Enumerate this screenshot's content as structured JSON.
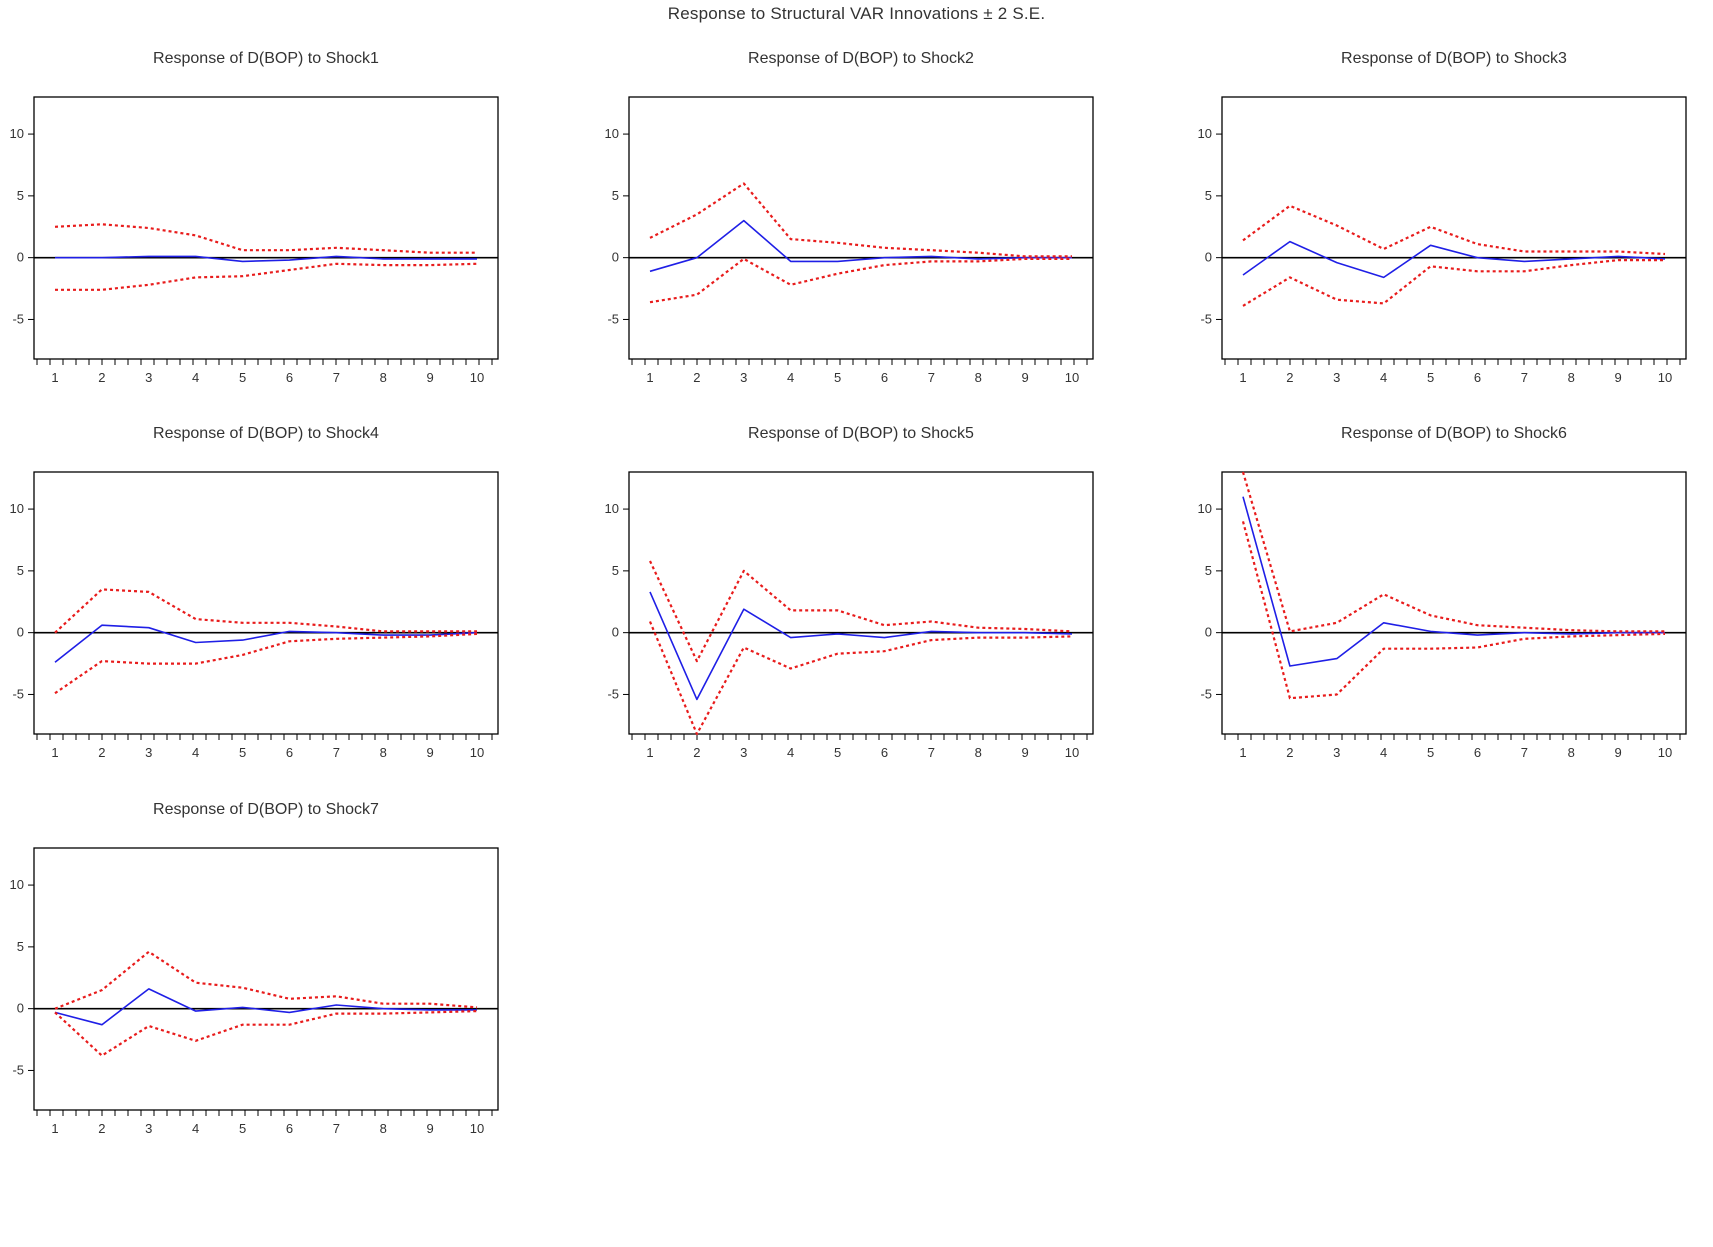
{
  "title": "Response to Structural VAR Innovations ± 2 S.E.",
  "colors": {
    "response": "#1f1fe6",
    "bands": "#e81c1c",
    "zero_line": "#000000"
  },
  "chart_data": [
    {
      "type": "line",
      "title": "Response of D(BOP) to Shock1",
      "x": [
        1,
        2,
        3,
        4,
        5,
        6,
        7,
        8,
        9,
        10
      ],
      "ylim": [
        -8.2,
        13
      ],
      "yticks": [
        -5,
        0,
        5,
        10
      ],
      "series": [
        {
          "role": "response",
          "values": [
            0.0,
            0.0,
            0.1,
            0.1,
            -0.3,
            -0.2,
            0.1,
            -0.1,
            -0.1,
            -0.1
          ]
        },
        {
          "role": "upper",
          "values": [
            2.5,
            2.7,
            2.4,
            1.8,
            0.6,
            0.6,
            0.8,
            0.6,
            0.4,
            0.4
          ]
        },
        {
          "role": "lower",
          "values": [
            -2.6,
            -2.6,
            -2.2,
            -1.6,
            -1.5,
            -1.0,
            -0.5,
            -0.6,
            -0.6,
            -0.5
          ]
        }
      ]
    },
    {
      "type": "line",
      "title": "Response of D(BOP) to Shock2",
      "x": [
        1,
        2,
        3,
        4,
        5,
        6,
        7,
        8,
        9,
        10
      ],
      "ylim": [
        -8.2,
        13
      ],
      "yticks": [
        -5,
        0,
        5,
        10
      ],
      "series": [
        {
          "role": "response",
          "values": [
            -1.1,
            0.0,
            3.0,
            -0.3,
            -0.3,
            0.0,
            0.1,
            -0.1,
            0.0,
            0.0
          ]
        },
        {
          "role": "upper",
          "values": [
            1.6,
            3.5,
            6.0,
            1.5,
            1.2,
            0.8,
            0.6,
            0.4,
            0.1,
            0.1
          ]
        },
        {
          "role": "lower",
          "values": [
            -3.6,
            -3.0,
            -0.1,
            -2.2,
            -1.3,
            -0.6,
            -0.3,
            -0.3,
            -0.1,
            -0.1
          ]
        }
      ]
    },
    {
      "type": "line",
      "title": "Response of D(BOP) to Shock3",
      "x": [
        1,
        2,
        3,
        4,
        5,
        6,
        7,
        8,
        9,
        10
      ],
      "ylim": [
        -8.2,
        13
      ],
      "yticks": [
        -5,
        0,
        5,
        10
      ],
      "series": [
        {
          "role": "response",
          "values": [
            -1.4,
            1.3,
            -0.4,
            -1.6,
            1.0,
            0.0,
            -0.3,
            -0.1,
            0.1,
            -0.1
          ]
        },
        {
          "role": "upper",
          "values": [
            1.4,
            4.2,
            2.6,
            0.7,
            2.5,
            1.1,
            0.5,
            0.5,
            0.5,
            0.3
          ]
        },
        {
          "role": "lower",
          "values": [
            -3.9,
            -1.6,
            -3.4,
            -3.7,
            -0.7,
            -1.1,
            -1.1,
            -0.6,
            -0.2,
            -0.2
          ]
        }
      ]
    },
    {
      "type": "line",
      "title": "Response of D(BOP) to Shock4",
      "x": [
        1,
        2,
        3,
        4,
        5,
        6,
        7,
        8,
        9,
        10
      ],
      "ylim": [
        -8.2,
        13
      ],
      "yticks": [
        -5,
        0,
        5,
        10
      ],
      "series": [
        {
          "role": "response",
          "values": [
            -2.4,
            0.6,
            0.4,
            -0.8,
            -0.6,
            0.1,
            0.0,
            -0.2,
            -0.2,
            0.0
          ]
        },
        {
          "role": "upper",
          "values": [
            0.0,
            3.5,
            3.3,
            1.1,
            0.8,
            0.8,
            0.5,
            0.1,
            0.1,
            0.1
          ]
        },
        {
          "role": "lower",
          "values": [
            -4.9,
            -2.3,
            -2.5,
            -2.5,
            -1.8,
            -0.7,
            -0.5,
            -0.4,
            -0.3,
            -0.1
          ]
        }
      ]
    },
    {
      "type": "line",
      "title": "Response of D(BOP) to Shock5",
      "x": [
        1,
        2,
        3,
        4,
        5,
        6,
        7,
        8,
        9,
        10
      ],
      "ylim": [
        -8.2,
        13
      ],
      "yticks": [
        -5,
        0,
        5,
        10
      ],
      "series": [
        {
          "role": "response",
          "values": [
            3.3,
            -5.4,
            1.9,
            -0.4,
            -0.1,
            -0.4,
            0.1,
            0.0,
            0.0,
            -0.1
          ]
        },
        {
          "role": "upper",
          "values": [
            5.8,
            -2.3,
            5.0,
            1.8,
            1.8,
            0.6,
            0.9,
            0.4,
            0.3,
            0.1
          ]
        },
        {
          "role": "lower",
          "values": [
            0.9,
            -8.2,
            -1.2,
            -2.9,
            -1.7,
            -1.5,
            -0.6,
            -0.4,
            -0.4,
            -0.3
          ]
        }
      ]
    },
    {
      "type": "line",
      "title": "Response of D(BOP) to Shock6",
      "x": [
        1,
        2,
        3,
        4,
        5,
        6,
        7,
        8,
        9,
        10
      ],
      "ylim": [
        -8.2,
        13
      ],
      "yticks": [
        -5,
        0,
        5,
        10
      ],
      "series": [
        {
          "role": "response",
          "values": [
            11.0,
            -2.7,
            -2.1,
            0.8,
            0.1,
            -0.2,
            0.0,
            -0.1,
            0.0,
            0.0
          ]
        },
        {
          "role": "upper",
          "values": [
            13.0,
            0.1,
            0.8,
            3.1,
            1.4,
            0.6,
            0.4,
            0.2,
            0.1,
            0.1
          ]
        },
        {
          "role": "lower",
          "values": [
            9.0,
            -5.3,
            -5.0,
            -1.3,
            -1.3,
            -1.2,
            -0.5,
            -0.3,
            -0.2,
            -0.1
          ]
        }
      ]
    },
    {
      "type": "line",
      "title": "Response of D(BOP) to Shock7",
      "x": [
        1,
        2,
        3,
        4,
        5,
        6,
        7,
        8,
        9,
        10
      ],
      "ylim": [
        -8.2,
        13
      ],
      "yticks": [
        -5,
        0,
        5,
        10
      ],
      "series": [
        {
          "role": "response",
          "values": [
            -0.3,
            -1.3,
            1.6,
            -0.2,
            0.1,
            -0.3,
            0.3,
            0.0,
            -0.1,
            -0.1
          ]
        },
        {
          "role": "upper",
          "values": [
            0.0,
            1.5,
            4.6,
            2.1,
            1.7,
            0.8,
            1.0,
            0.4,
            0.4,
            0.1
          ]
        },
        {
          "role": "lower",
          "values": [
            -0.3,
            -3.8,
            -1.4,
            -2.6,
            -1.3,
            -1.3,
            -0.4,
            -0.4,
            -0.3,
            -0.2
          ]
        }
      ]
    }
  ]
}
